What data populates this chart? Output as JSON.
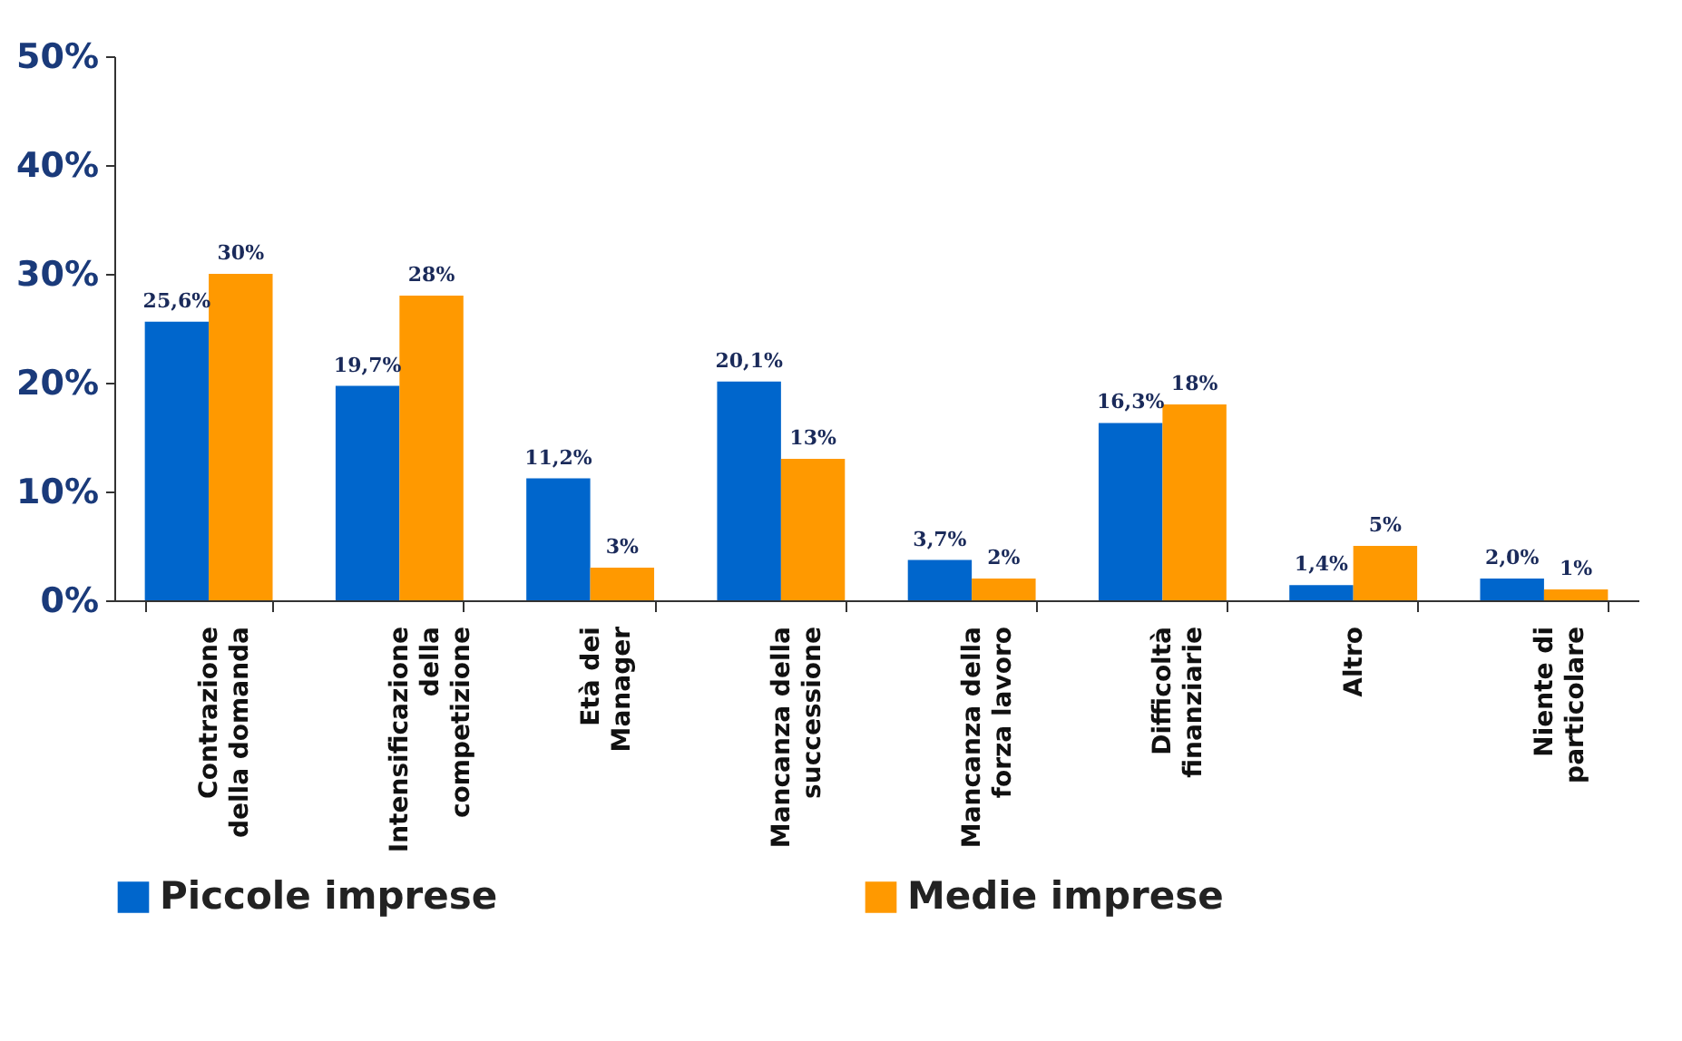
{
  "chart_data": {
    "type": "bar",
    "categories": [
      "Contrazione\ndella domanda",
      "Intensificazione\ndella\ncompetizione",
      "Età dei\nManager",
      "Mancanza della\nsuccessione",
      "Mancanza della\nforza lavoro",
      "Difficoltà\nfinanziarie",
      "Altro",
      "Niente di\nparticolare"
    ],
    "series": [
      {
        "name": "Piccole imprese",
        "color": "#0066cc",
        "values": [
          25.6,
          19.7,
          11.2,
          20.1,
          3.7,
          16.3,
          1.4,
          2.0
        ],
        "value_labels": [
          "25,6%",
          "19,7%",
          "11,2%",
          "20,1%",
          "3,7%",
          "16,3%",
          "1,4%",
          "2,0%"
        ]
      },
      {
        "name": "Medie imprese",
        "color": "#ff9900",
        "values": [
          30,
          28,
          3,
          13,
          2,
          18,
          5,
          1
        ],
        "value_labels": [
          "30%",
          "28%",
          "3%",
          "13%",
          "2%",
          "18%",
          "5%",
          "1%"
        ]
      }
    ],
    "ylim": [
      0,
      50
    ],
    "yticks": [
      {
        "value": 0,
        "label": "0%"
      },
      {
        "value": 10,
        "label": "10%"
      },
      {
        "value": 20,
        "label": "20%"
      },
      {
        "value": 30,
        "label": "30%"
      },
      {
        "value": 40,
        "label": "40%"
      },
      {
        "value": 50,
        "label": "50%"
      }
    ],
    "grid": false,
    "legend": "bottom"
  }
}
